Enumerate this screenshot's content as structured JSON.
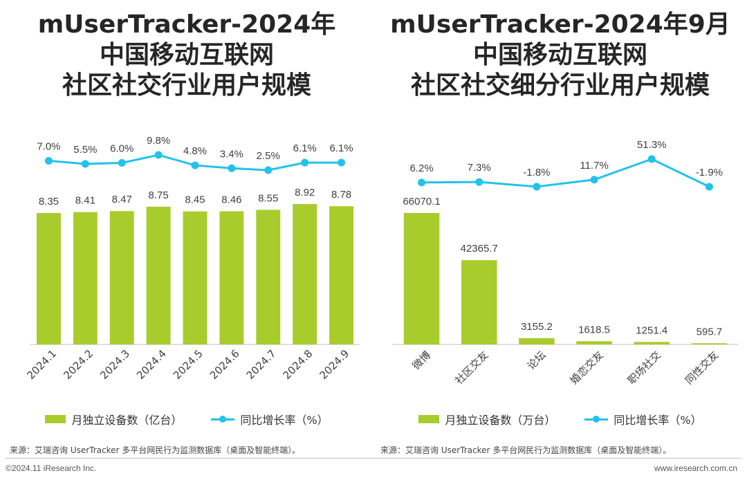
{
  "colors": {
    "bar": "#a8cc2c",
    "line": "#22c2ea",
    "axis": "#bfbfbf",
    "text": "#404040"
  },
  "left": {
    "title": [
      "mUserTracker-2024年",
      "中国移动互联网",
      "社区社交行业用户规模"
    ],
    "legend_bar": "月独立设备数（亿台）",
    "legend_line": "同比增长率（%）",
    "source": "来源：艾瑞咨询 UserTracker 多平台网民行为监测数据库（桌面及智能终端）。"
  },
  "right": {
    "title": [
      "mUserTracker-2024年9月",
      "中国移动互联网",
      "社区社交细分行业用户规模"
    ],
    "legend_bar": "月独立设备数（万台）",
    "legend_line": "同比增长率（%）",
    "source": "来源：艾瑞咨询 UserTracker 多平台网民行为监测数据库（桌面及智能终端）。"
  },
  "footer": {
    "copyright": "©2024.11 iResearch Inc.",
    "website": "www.iresearch.com.cn"
  },
  "chart_data": [
    {
      "type": "bar",
      "categories": [
        "2024.1",
        "2024.2",
        "2024.3",
        "2024.4",
        "2024.5",
        "2024.6",
        "2024.7",
        "2024.8",
        "2024.9"
      ],
      "series": [
        {
          "name": "月独立设备数（亿台）",
          "type": "bar",
          "values": [
            8.35,
            8.41,
            8.47,
            8.75,
            8.45,
            8.46,
            8.55,
            8.92,
            8.78
          ],
          "labels": [
            "8.35",
            "8.41",
            "8.47",
            "8.75",
            "8.45",
            "8.46",
            "8.55",
            "8.92",
            "8.78"
          ]
        },
        {
          "name": "同比增长率（%）",
          "type": "line",
          "values": [
            7.0,
            5.5,
            6.0,
            9.8,
            4.8,
            3.4,
            2.5,
            6.1,
            6.1
          ],
          "labels": [
            "7.0%",
            "5.5%",
            "6.0%",
            "9.8%",
            "4.8%",
            "3.4%",
            "2.5%",
            "6.1%",
            "6.1%"
          ]
        }
      ]
    },
    {
      "type": "bar",
      "categories": [
        "微博",
        "社区交友",
        "论坛",
        "婚恋交友",
        "职场社交",
        "同性交友"
      ],
      "series": [
        {
          "name": "月独立设备数（万台）",
          "type": "bar",
          "values": [
            66070.1,
            42365.7,
            3155.2,
            1618.5,
            1251.4,
            595.7
          ],
          "labels": [
            "66070.1",
            "42365.7",
            "3155.2",
            "1618.5",
            "1251.4",
            "595.7"
          ]
        },
        {
          "name": "同比增长率（%）",
          "type": "line",
          "values": [
            6.2,
            7.3,
            -1.8,
            11.7,
            51.3,
            -1.9
          ],
          "labels": [
            "6.2%",
            "7.3%",
            "-1.8%",
            "11.7%",
            "51.3%",
            "-1.9%"
          ]
        }
      ]
    }
  ]
}
